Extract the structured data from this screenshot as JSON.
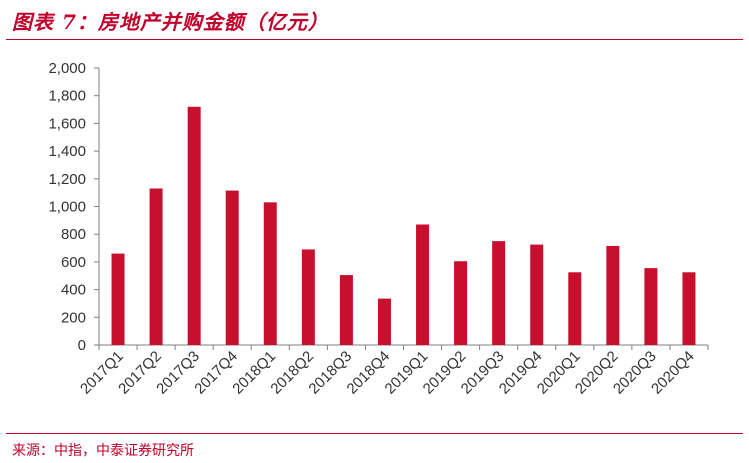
{
  "header": {
    "title": "图表 7：房地产并购金额（亿元）"
  },
  "footer": {
    "source": "来源：中指，中泰证券研究所"
  },
  "colors": {
    "accent": "#c0002a",
    "bar": "#c8102e",
    "axis": "#7f7f7f"
  },
  "chart_data": {
    "type": "bar",
    "title": "图表 7：房地产并购金额（亿元）",
    "xlabel": "",
    "ylabel": "",
    "ylim": [
      0,
      2000
    ],
    "yticks": [
      0,
      200,
      400,
      600,
      800,
      1000,
      1200,
      1400,
      1600,
      1800,
      2000
    ],
    "ytick_labels": [
      "0",
      "200",
      "400",
      "600",
      "800",
      "1,000",
      "1,200",
      "1,400",
      "1,600",
      "1,800",
      "2,000"
    ],
    "categories": [
      "2017Q1",
      "2017Q2",
      "2017Q3",
      "2017Q4",
      "2018Q1",
      "2018Q2",
      "2018Q3",
      "2018Q4",
      "2019Q1",
      "2019Q2",
      "2019Q3",
      "2019Q4",
      "2020Q1",
      "2020Q2",
      "2020Q3",
      "2020Q4"
    ],
    "values": [
      660,
      1130,
      1720,
      1115,
      1030,
      690,
      505,
      335,
      870,
      605,
      750,
      725,
      525,
      715,
      555,
      525
    ],
    "grid": false,
    "legend": "none"
  }
}
